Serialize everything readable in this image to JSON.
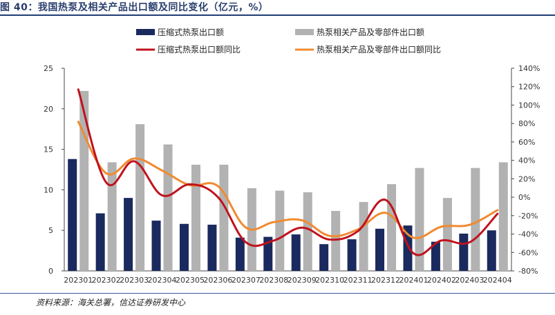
{
  "figure": {
    "title": "图 40：我国热泵及相关产品出口额及同比变化（亿元，%）",
    "source": "资料来源：海关总署，信达证券研发中心"
  },
  "chart_data": {
    "type": "bar+line",
    "title": "图 40：我国热泵及相关产品出口额及同比变化（亿元，%）",
    "categories": [
      "202301",
      "202302",
      "202303",
      "202304",
      "202305",
      "202306",
      "202307",
      "202308",
      "202309",
      "202310",
      "202311",
      "202312",
      "202401",
      "202402",
      "202403",
      "202404"
    ],
    "y_left": {
      "min": 0,
      "max": 25,
      "ticks": [
        0,
        5,
        10,
        15,
        20,
        25
      ]
    },
    "y_right": {
      "min": -80,
      "max": 140,
      "ticks": [
        -80,
        -60,
        -40,
        -20,
        0,
        20,
        40,
        60,
        80,
        100,
        120,
        140
      ],
      "unit": "%"
    },
    "series": [
      {
        "name": "压缩式热泵出口额",
        "kind": "bar",
        "axis": "left",
        "color": "#1a2a5e",
        "values": [
          13.8,
          7.1,
          9.0,
          6.2,
          5.8,
          5.7,
          4.1,
          4.2,
          4.5,
          3.3,
          3.9,
          5.2,
          5.6,
          3.6,
          4.6,
          5.0
        ]
      },
      {
        "name": "热泵相关产品及零部件出口额",
        "kind": "bar",
        "axis": "left",
        "color": "#b2b2b2",
        "values": [
          22.2,
          13.4,
          18.1,
          15.6,
          13.1,
          13.1,
          10.2,
          9.9,
          9.7,
          7.4,
          8.5,
          10.7,
          12.7,
          9.0,
          12.7,
          13.4
        ]
      },
      {
        "name": "压缩式热泵出口额同比",
        "kind": "line",
        "axis": "right",
        "color": "#c0121c",
        "values": [
          117,
          16,
          39,
          2,
          14,
          0,
          -49,
          -47,
          -33,
          -46,
          -37,
          -3,
          -61,
          -47,
          -49,
          -18
        ]
      },
      {
        "name": "热泵相关产品及零部件出口额同比",
        "kind": "line",
        "axis": "right",
        "color": "#f08a30",
        "values": [
          82,
          26,
          42,
          29,
          13,
          12,
          -33,
          -27,
          -25,
          -42,
          -35,
          -17,
          -44,
          -32,
          -30,
          -14
        ]
      }
    ],
    "legend_placement": "top"
  }
}
